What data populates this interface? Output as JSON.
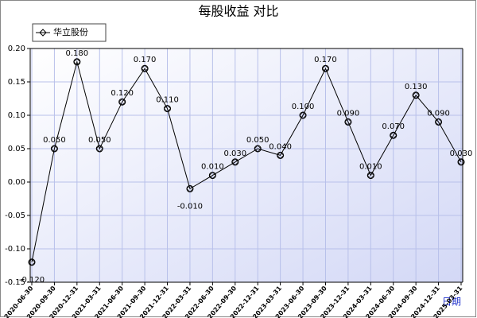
{
  "chart_data": {
    "type": "line",
    "title": "每股收益 对比",
    "x_label": "日期",
    "categories": [
      "2020-06-30",
      "2020-09-30",
      "2020-12-31",
      "2021-03-31",
      "2021-06-30",
      "2021-09-30",
      "2021-12-31",
      "2022-03-31",
      "2022-06-30",
      "2022-09-30",
      "2022-12-31",
      "2023-03-31",
      "2023-06-30",
      "2023-09-30",
      "2023-12-31",
      "2024-03-31",
      "2024-06-30",
      "2024-09-30",
      "2024-12-31",
      "2025-03-31"
    ],
    "series": [
      {
        "name": "华立股份",
        "color": "#000000",
        "values": [
          -0.12,
          0.05,
          0.18,
          0.05,
          0.12,
          0.17,
          0.11,
          -0.01,
          0.01,
          0.03,
          0.05,
          0.04,
          0.1,
          0.17,
          0.09,
          0.01,
          0.07,
          0.13,
          0.09,
          0.03
        ],
        "value_labels": [
          "-0.120",
          "0.050",
          "0.180",
          "0.050",
          "0.120",
          "0.170",
          "0.110",
          "-0.010",
          "0.010",
          "0.030",
          "0.050",
          "0.040",
          "0.100",
          "0.170",
          "0.090",
          "0.010",
          "0.070",
          "0.130",
          "0.090",
          "0.030"
        ]
      }
    ],
    "ylim": [
      -0.15,
      0.2
    ],
    "yticks": [
      {
        "value": -0.15,
        "label": "-0.15"
      },
      {
        "value": -0.1,
        "label": "-0.10"
      },
      -0.05,
      {
        "value": 0,
        "label": "0.00"
      },
      0.05,
      {
        "value": 0.1,
        "label": "0.10"
      },
      0.15,
      {
        "value": 0.2,
        "label": "0.20"
      }
    ],
    "grid": true,
    "legend": "top-left"
  }
}
